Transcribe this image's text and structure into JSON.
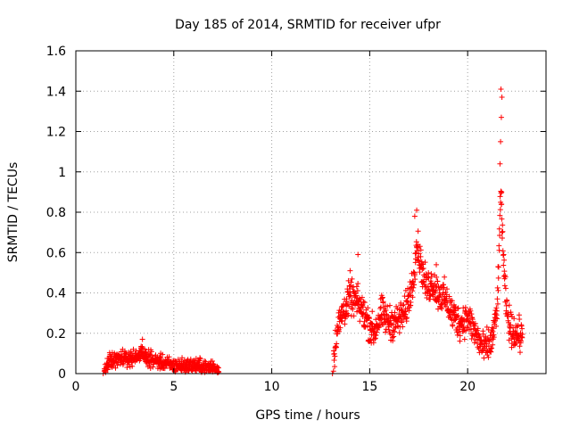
{
  "chart_data": {
    "type": "scatter",
    "title": "Day 185 of 2014, SRMTID for receiver ufpr",
    "xlabel": "GPS time / hours",
    "ylabel": "SRMTID / TECUs",
    "xlim": [
      0,
      24
    ],
    "ylim": [
      0,
      1.6
    ],
    "xticks": [
      0,
      5,
      10,
      15,
      20
    ],
    "xtick_labels": [
      "0",
      "5",
      "10",
      "15",
      "20"
    ],
    "yticks": [
      0,
      0.2,
      0.4,
      0.6,
      0.8,
      1,
      1.2,
      1.4,
      1.6
    ],
    "ytick_labels": [
      "0",
      "0.2",
      "0.4",
      "0.6",
      "0.8",
      "1",
      "1.2",
      "1.4",
      "1.6"
    ],
    "grid": true,
    "marker": "plus",
    "color": "#ff0000",
    "series": [
      {
        "name": "SRMTID",
        "segments": [
          {
            "x_range": [
              1.4,
              7.3
            ],
            "anchors_x": [
              1.4,
              1.7,
              2.0,
              2.3,
              2.6,
              3.0,
              3.3,
              3.5,
              3.8,
              4.2,
              4.6,
              5.0,
              5.4,
              5.8,
              6.2,
              6.6,
              7.0,
              7.3
            ],
            "anchors_y": [
              0.0,
              0.06,
              0.07,
              0.08,
              0.07,
              0.08,
              0.1,
              0.09,
              0.07,
              0.06,
              0.05,
              0.04,
              0.04,
              0.04,
              0.04,
              0.03,
              0.03,
              0.02
            ],
            "noise": 0.035
          },
          {
            "x_range": [
              13.1,
              22.8
            ],
            "anchors_x": [
              13.1,
              13.3,
              13.6,
              14.0,
              14.4,
              14.8,
              15.2,
              15.6,
              16.0,
              16.4,
              16.8,
              17.2,
              17.4,
              17.6,
              17.9,
              18.2,
              18.5,
              18.8,
              19.2,
              19.6,
              20.0,
              20.4,
              20.8,
              21.2,
              21.5,
              21.7,
              21.85,
              22.0,
              22.2,
              22.5,
              22.8
            ],
            "anchors_y": [
              0.0,
              0.2,
              0.3,
              0.38,
              0.35,
              0.28,
              0.2,
              0.3,
              0.25,
              0.26,
              0.3,
              0.45,
              0.65,
              0.55,
              0.42,
              0.45,
              0.4,
              0.38,
              0.3,
              0.25,
              0.28,
              0.2,
              0.12,
              0.15,
              0.3,
              0.9,
              0.5,
              0.3,
              0.22,
              0.2,
              0.18
            ],
            "noise": 0.08
          }
        ],
        "peaks": [
          {
            "x": 21.7,
            "y": 1.41
          },
          {
            "x": 21.75,
            "y": 1.37
          },
          {
            "x": 21.72,
            "y": 1.27
          },
          {
            "x": 21.68,
            "y": 1.15
          },
          {
            "x": 21.65,
            "y": 1.04
          },
          {
            "x": 21.73,
            "y": 0.9
          },
          {
            "x": 17.4,
            "y": 0.81
          },
          {
            "x": 17.3,
            "y": 0.78
          },
          {
            "x": 14.4,
            "y": 0.59
          },
          {
            "x": 14.0,
            "y": 0.51
          },
          {
            "x": 18.4,
            "y": 0.54
          },
          {
            "x": 3.4,
            "y": 0.17
          }
        ]
      }
    ]
  }
}
